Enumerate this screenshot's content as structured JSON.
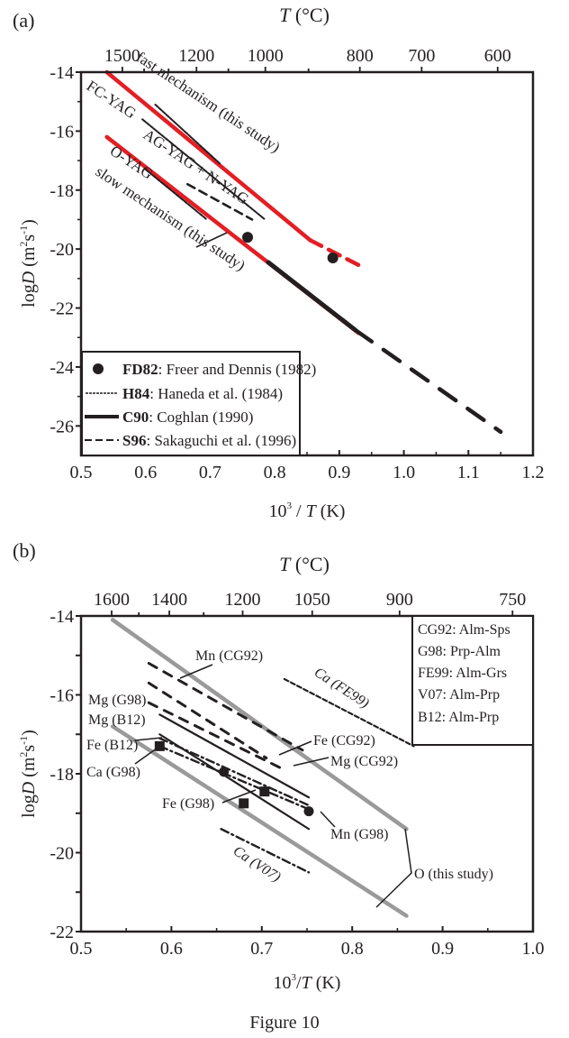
{
  "figure_caption": "Figure 10",
  "chart_data": [
    {
      "panel_label": "(a)",
      "type": "line",
      "xlabel_pre": "10",
      "xlabel_sup": "3",
      "xlabel_post": " / ",
      "xlabel_var": "T",
      "xlabel_unit": " (K)",
      "ylabel_pre": "log",
      "ylabel_var": "D",
      "ylabel_unit": " (m",
      "ylabel_sup1": "2",
      "ylabel_mid": "s",
      "ylabel_sup2": "-1",
      "ylabel_end": ")",
      "top_axis_var": "T",
      "top_axis_unit": " (°C)",
      "xlim": [
        0.5,
        1.2
      ],
      "ylim": [
        -27,
        -14
      ],
      "x_ticks": [
        {
          "v": 0.5,
          "label": "0.5"
        },
        {
          "v": 0.6,
          "label": "0.6"
        },
        {
          "v": 0.7,
          "label": "0.7"
        },
        {
          "v": 0.8,
          "label": "0.8"
        },
        {
          "v": 0.9,
          "label": "0.9"
        },
        {
          "v": 1.0,
          "label": "1.0"
        },
        {
          "v": 1.1,
          "label": "1.1"
        },
        {
          "v": 1.2,
          "label": "1.2"
        }
      ],
      "y_ticks": [
        {
          "v": -14,
          "label": "-14"
        },
        {
          "v": -16,
          "label": "-16"
        },
        {
          "v": -18,
          "label": "-18"
        },
        {
          "v": -20,
          "label": "-20"
        },
        {
          "v": -22,
          "label": "-22"
        },
        {
          "v": -24,
          "label": "-24"
        },
        {
          "v": -26,
          "label": "-26"
        }
      ],
      "top_ticks": [
        {
          "c": 1500,
          "label": "1500"
        },
        {
          "c": 1400,
          "label": ""
        },
        {
          "c": 1300,
          "label": ""
        },
        {
          "c": 1200,
          "label": "1200"
        },
        {
          "c": 1100,
          "label": ""
        },
        {
          "c": 1000,
          "label": "1000"
        },
        {
          "c": 900,
          "label": ""
        },
        {
          "c": 800,
          "label": "800"
        },
        {
          "c": 700,
          "label": "700"
        },
        {
          "c": 600,
          "label": "600"
        }
      ],
      "series": [
        {
          "name": "fast mechanism (this study)",
          "style": "red-solid",
          "color": "#e31e24",
          "x": [
            0.54,
            0.855
          ],
          "y": [
            -14.0,
            -19.7
          ],
          "extrapolated": {
            "x": [
              0.855,
              0.935
            ],
            "y": [
              -19.7,
              -20.6
            ]
          }
        },
        {
          "name": "slow mechanism (this study)",
          "style": "red-solid",
          "color": "#e31e24",
          "x": [
            0.54,
            0.93
          ],
          "y": [
            -16.2,
            -22.85
          ]
        },
        {
          "name": "FC-YAG",
          "source": "H84",
          "style": "dash-dot-fine",
          "x": [
            0.615,
            0.715
          ],
          "y": [
            -15.1,
            -17.1
          ]
        },
        {
          "name": "AG-YAG + N-YAG",
          "source": "H84",
          "style": "dash-dot-fine",
          "x": [
            0.595,
            0.785
          ],
          "y": [
            -15.6,
            -19.0
          ]
        },
        {
          "name": "AG-YAG + N-YAG",
          "source": "S96",
          "style": "dashed",
          "x": [
            0.665,
            0.765
          ],
          "y": [
            -17.8,
            -19.0
          ]
        },
        {
          "name": "O-YAG",
          "source": "H84",
          "style": "dash-dot-fine",
          "x": [
            0.6,
            0.695
          ],
          "y": [
            -17.3,
            -19.0
          ]
        },
        {
          "name": "C90",
          "source": "C90",
          "style": "thick-solid",
          "x": [
            0.79,
            0.925
          ],
          "y": [
            -20.45,
            -22.75
          ]
        },
        {
          "name": "S96 extrapolation",
          "source": "S96",
          "style": "dashed-thick",
          "x": [
            0.925,
            1.15
          ],
          "y": [
            -22.75,
            -26.2
          ]
        }
      ],
      "points": [
        {
          "name": "FD82",
          "x": 0.758,
          "y": -19.6
        },
        {
          "name": "FD82",
          "x": 0.89,
          "y": -20.3
        }
      ],
      "annotations": [
        {
          "text": "fast mechanism (this study)"
        },
        {
          "text": "FC-YAG"
        },
        {
          "text": "AG-YAG + N-YAG"
        },
        {
          "text": "O-YAG"
        },
        {
          "text": "slow mechanism (this study)"
        }
      ],
      "legend": {
        "position": "bottom-left",
        "entries": [
          {
            "marker": "dot",
            "key": "FD82",
            "text": ": Freer and Dennis (1982)"
          },
          {
            "marker": "dash-dot-fine",
            "key": "H84",
            "text": ": Haneda et al. (1984)"
          },
          {
            "marker": "thick-solid",
            "key": "C90",
            "text": ": Coghlan (1990)"
          },
          {
            "marker": "dashed",
            "key": "S96",
            "text": ": Sakaguchi et al. (1996)"
          }
        ]
      }
    },
    {
      "panel_label": "(b)",
      "type": "line",
      "xlabel_pre": "10",
      "xlabel_sup": "3",
      "xlabel_post": "/",
      "xlabel_var": "T",
      "xlabel_unit": " (K)",
      "ylabel_pre": "log",
      "ylabel_var": "D",
      "ylabel_unit": " (m",
      "ylabel_sup1": "2",
      "ylabel_mid": "s",
      "ylabel_sup2": "-1",
      "ylabel_end": ")",
      "top_axis_var": "T",
      "top_axis_unit": " (°C)",
      "xlim": [
        0.5,
        1.0
      ],
      "ylim": [
        -22,
        -14
      ],
      "x_ticks": [
        {
          "v": 0.5,
          "label": "0.5"
        },
        {
          "v": 0.6,
          "label": "0.6"
        },
        {
          "v": 0.7,
          "label": "0.7"
        },
        {
          "v": 0.8,
          "label": "0.8"
        },
        {
          "v": 0.9,
          "label": "0.9"
        },
        {
          "v": 1.0,
          "label": "1.0"
        }
      ],
      "y_ticks": [
        {
          "v": -14,
          "label": "-14"
        },
        {
          "v": -15,
          "label": ""
        },
        {
          "v": -16,
          "label": "-16"
        },
        {
          "v": -17,
          "label": ""
        },
        {
          "v": -18,
          "label": "-18"
        },
        {
          "v": -19,
          "label": ""
        },
        {
          "v": -20,
          "label": "-20"
        },
        {
          "v": -21,
          "label": ""
        },
        {
          "v": -22,
          "label": "-22"
        }
      ],
      "top_ticks": [
        {
          "c": 1600,
          "label": "1600"
        },
        {
          "c": 1500,
          "label": ""
        },
        {
          "c": 1400,
          "label": "1400"
        },
        {
          "c": 1300,
          "label": ""
        },
        {
          "c": 1200,
          "label": "1200"
        },
        {
          "c": 1050,
          "label": "1050"
        },
        {
          "c": 900,
          "label": "900"
        },
        {
          "c": 750,
          "label": "750"
        }
      ],
      "series": [
        {
          "name": "O (this study) upper",
          "style": "grey-thick",
          "color": "#999999",
          "x": [
            0.535,
            0.86
          ],
          "y": [
            -14.1,
            -19.4
          ]
        },
        {
          "name": "O (this study) lower",
          "style": "grey-thick",
          "color": "#999999",
          "x": [
            0.535,
            0.86
          ],
          "y": [
            -16.8,
            -21.6
          ]
        },
        {
          "name": "Mn (CG92)",
          "style": "dashed-long",
          "x": [
            0.575,
            0.745
          ],
          "y": [
            -15.2,
            -17.4
          ]
        },
        {
          "name": "Fe (CG92)",
          "style": "dashed-long",
          "x": [
            0.575,
            0.705
          ],
          "y": [
            -15.7,
            -17.6
          ]
        },
        {
          "name": "Mg (CG92)",
          "style": "dashed-long",
          "x": [
            0.575,
            0.725
          ],
          "y": [
            -16.2,
            -17.9
          ]
        },
        {
          "name": "Mg (G98)",
          "style": "solid",
          "x": [
            0.587,
            0.752
          ],
          "y": [
            -16.5,
            -18.6
          ]
        },
        {
          "name": "Mg (B12)",
          "style": "dash-dot",
          "x": [
            0.587,
            0.752
          ],
          "y": [
            -17.1,
            -18.8
          ]
        },
        {
          "name": "Fe (B12)",
          "style": "dash-dot",
          "x": [
            0.587,
            0.752
          ],
          "y": [
            -17.3,
            -18.9
          ]
        },
        {
          "name": "Fe (G98)",
          "style": "solid",
          "x": [
            0.587,
            0.752
          ],
          "y": [
            -17.0,
            -19.4
          ]
        },
        {
          "name": "Ca (FE99)",
          "style": "dashed-fine",
          "x": [
            0.725,
            0.868
          ],
          "y": [
            -15.6,
            -17.3
          ]
        },
        {
          "name": "Ca (V07)",
          "style": "dash-dot",
          "x": [
            0.655,
            0.752
          ],
          "y": [
            -19.4,
            -20.5
          ]
        }
      ],
      "points": [
        {
          "name": "Ca (G98)",
          "marker": "square",
          "x": 0.587,
          "y": -17.3
        },
        {
          "name": "Mg",
          "marker": "dot",
          "x": 0.658,
          "y": -17.95
        },
        {
          "name": "Fe",
          "marker": "square",
          "x": 0.703,
          "y": -18.45
        },
        {
          "name": "Fe (G98)",
          "marker": "square",
          "x": 0.68,
          "y": -18.75
        },
        {
          "name": "Mn (G98)",
          "marker": "dot",
          "x": 0.752,
          "y": -18.95
        }
      ],
      "annotations": [
        {
          "text": "Mn (CG92)"
        },
        {
          "text": "Mg (G98)"
        },
        {
          "text": "Mg (B12)"
        },
        {
          "text": "Fe (B12)"
        },
        {
          "text": "Ca (G98)"
        },
        {
          "text": "Fe (G98)"
        },
        {
          "text": "Fe (CG92)"
        },
        {
          "text": "Mg (CG92)"
        },
        {
          "text": "Mn (G98)"
        },
        {
          "text": "Ca (FE99)"
        },
        {
          "text": "Ca (V07)"
        },
        {
          "text": "O (this study)"
        }
      ],
      "legend": {
        "position": "top-right",
        "entries": [
          {
            "text": "CG92: Alm-Sps"
          },
          {
            "text": "G98: Prp-Alm"
          },
          {
            "text": "FE99: Alm-Grs"
          },
          {
            "text": "V07: Alm-Prp"
          },
          {
            "text": "B12: Alm-Prp"
          }
        ]
      }
    }
  ]
}
